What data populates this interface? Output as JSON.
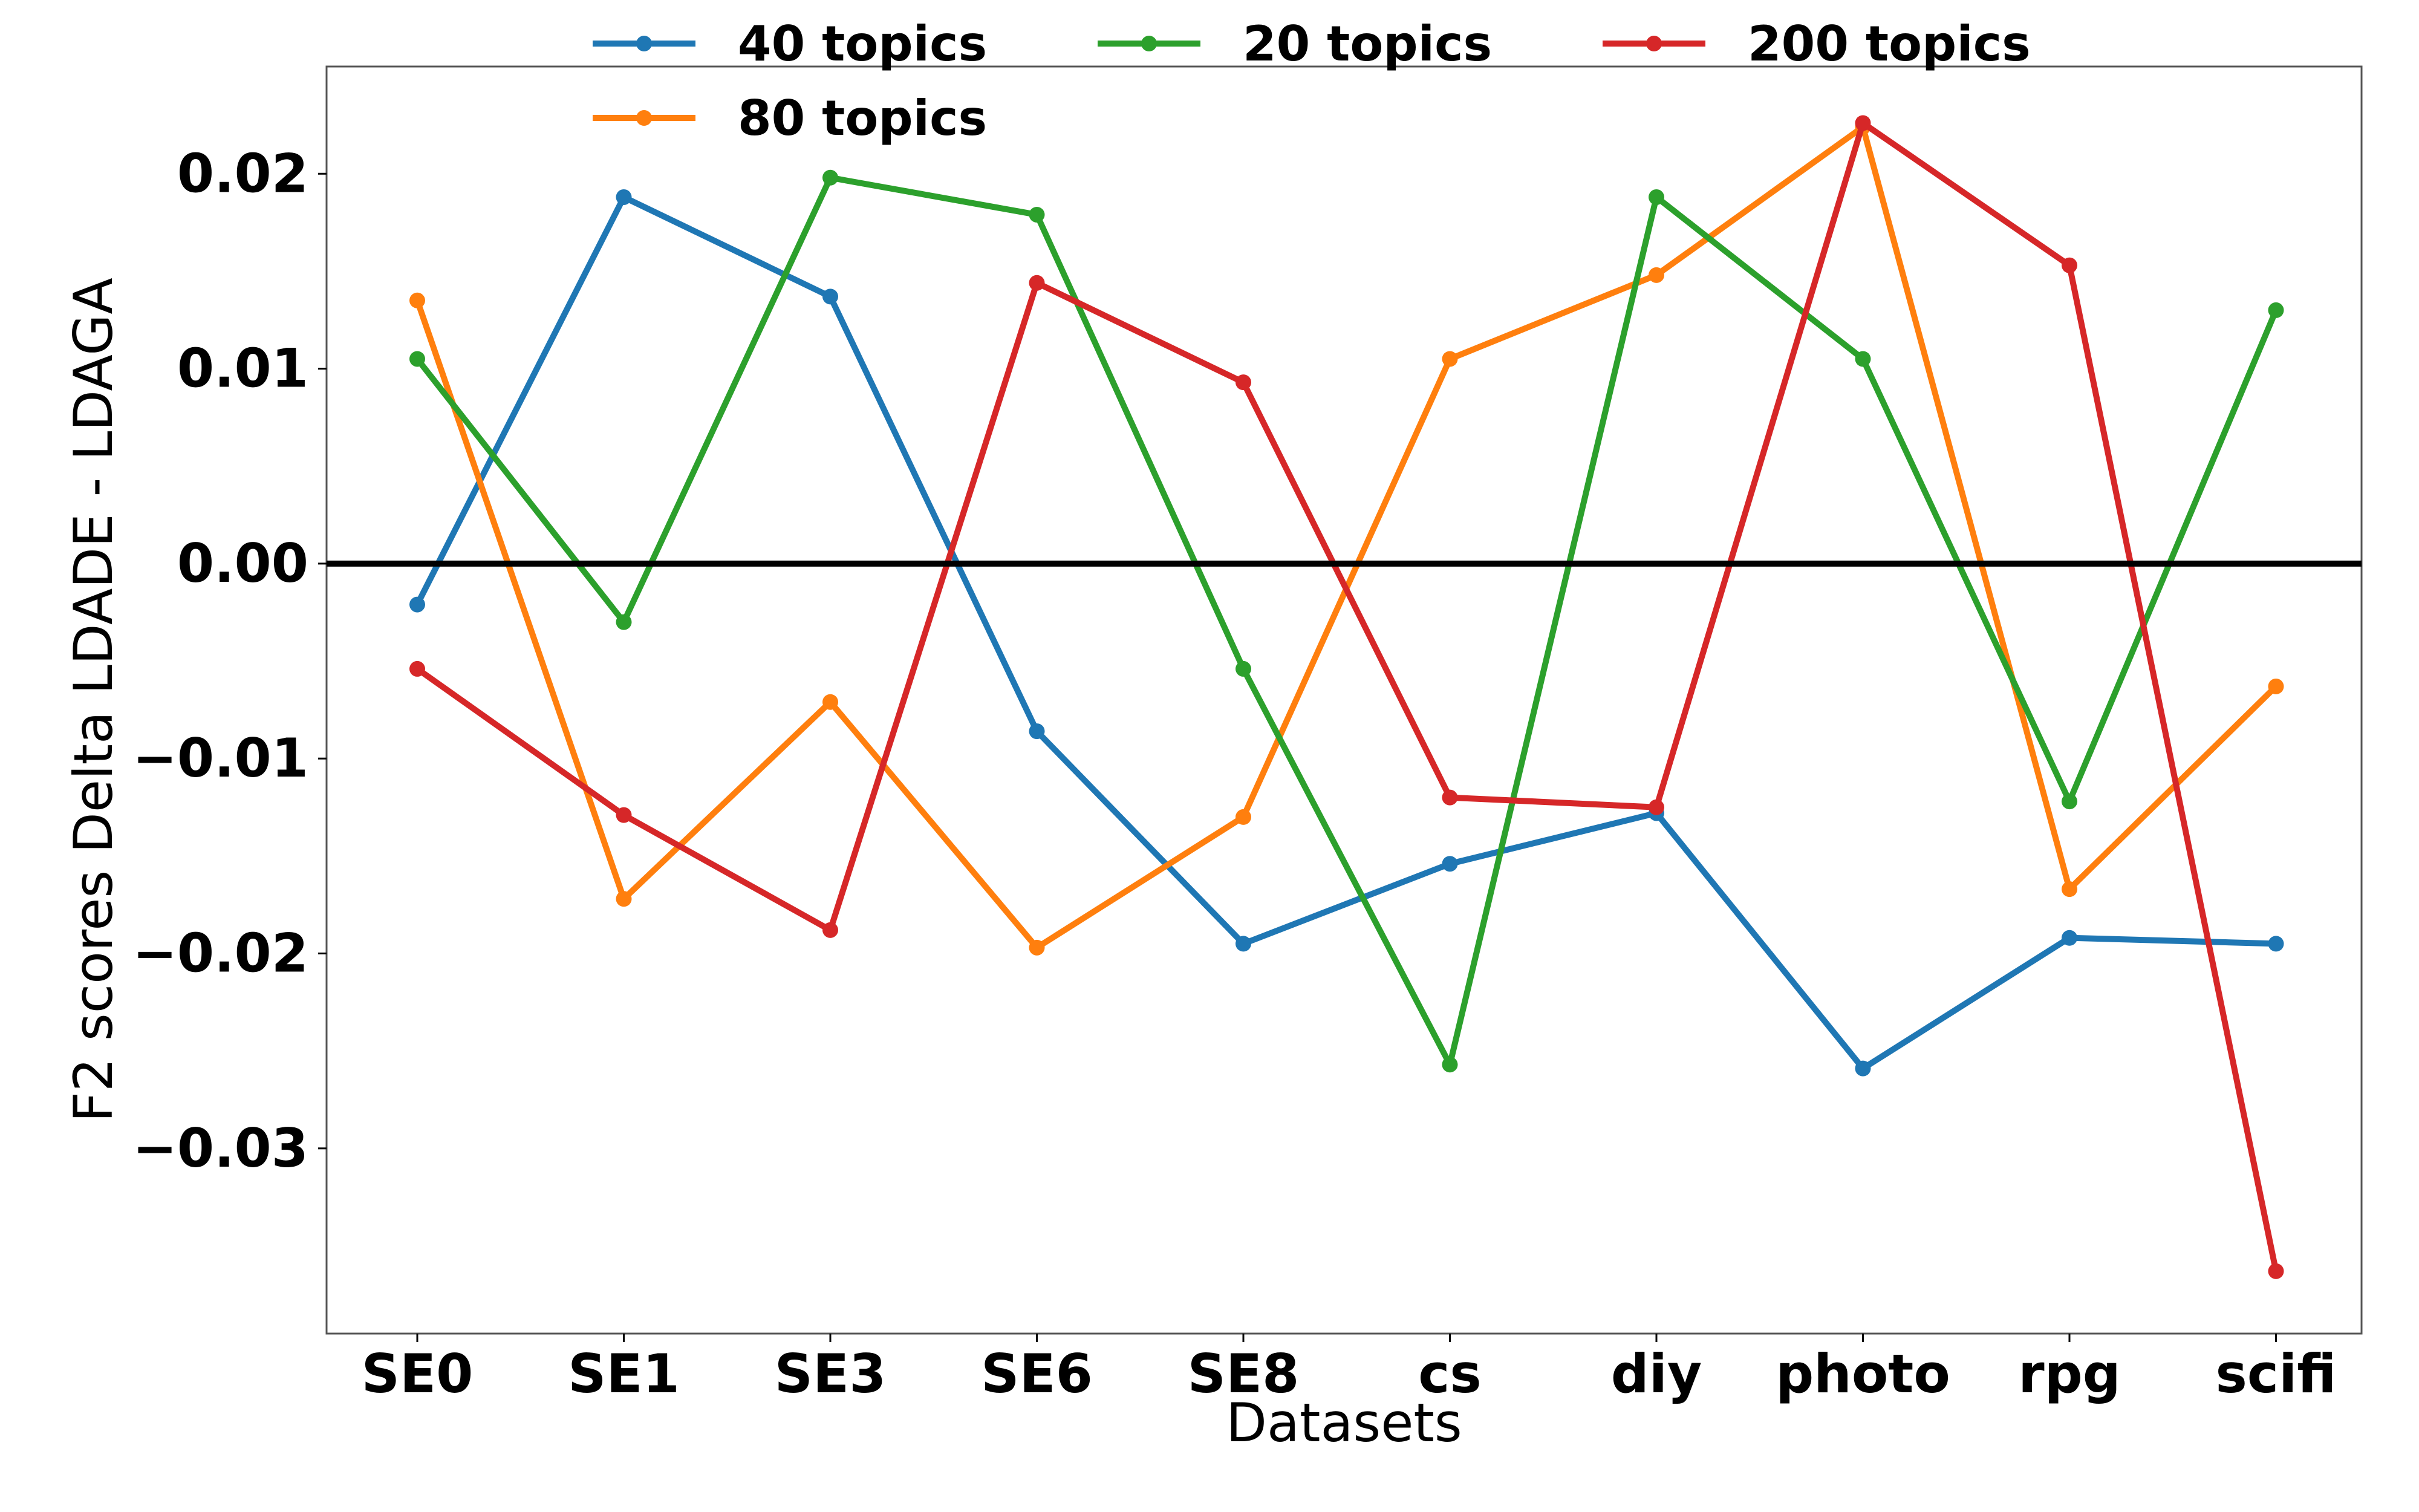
{
  "chart_data": {
    "type": "line",
    "title": "",
    "xlabel": "Datasets",
    "ylabel": "F2 scores Delta LDADE - LDAGA",
    "categories": [
      "SE0",
      "SE1",
      "SE3",
      "SE6",
      "SE8",
      "cs",
      "diy",
      "photo",
      "rpg",
      "scifi"
    ],
    "yticks": [
      "0.02",
      "0.01",
      "0.00",
      "−0.01",
      "−0.02",
      "−0.03"
    ],
    "ytick_values": [
      0.02,
      0.01,
      0.0,
      -0.01,
      -0.02,
      -0.03
    ],
    "ylim": [
      -0.0395,
      0.0255
    ],
    "grid": false,
    "legend_position": "top",
    "reference_line": 0.0,
    "series": [
      {
        "name": "40 topics",
        "color": "#1f77b4",
        "values": [
          -0.0021,
          0.0188,
          0.0137,
          -0.0086,
          -0.0195,
          -0.0154,
          -0.0128,
          -0.0259,
          -0.0192,
          -0.0195
        ]
      },
      {
        "name": "80 topics",
        "color": "#ff7f0e",
        "values": [
          0.0135,
          -0.0172,
          -0.0071,
          -0.0197,
          -0.013,
          0.0105,
          0.0148,
          0.0224,
          -0.0167,
          -0.0063
        ]
      },
      {
        "name": "20 topics",
        "color": "#2ca02c",
        "values": [
          0.0105,
          -0.003,
          0.0198,
          0.0179,
          -0.0054,
          -0.0257,
          0.0188,
          0.0105,
          -0.0122,
          0.013
        ]
      },
      {
        "name": "200 topics",
        "color": "#d62728",
        "values": [
          -0.0054,
          -0.0129,
          -0.0188,
          0.0144,
          0.0093,
          -0.012,
          -0.0125,
          0.0226,
          0.0153,
          -0.0363
        ]
      }
    ]
  }
}
